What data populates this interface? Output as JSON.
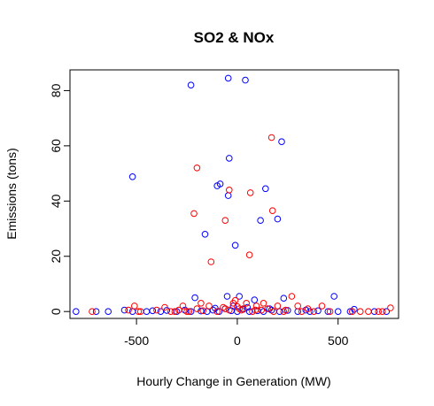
{
  "chart_data": {
    "type": "scatter",
    "title": "SO2 & NOx",
    "xlabel": "Hourly Change in Generation (MW)",
    "ylabel": "Emissions (tons)",
    "xlim": [
      -830,
      800
    ],
    "ylim": [
      -2.5,
      87.5
    ],
    "x_ticks": [
      -500,
      0,
      500
    ],
    "y_ticks": [
      0,
      20,
      40,
      60,
      80
    ],
    "grid": false,
    "legend": "none",
    "series": [
      {
        "color": "#0000ff",
        "points": [
          [
            -230,
            82
          ],
          [
            -45,
            84.5
          ],
          [
            40,
            83.8
          ],
          [
            220,
            61.5
          ],
          [
            -40,
            55.5
          ],
          [
            -520,
            48.8
          ],
          [
            140,
            44.5
          ],
          [
            -100,
            45.5
          ],
          [
            -85,
            46.2
          ],
          [
            -45,
            42
          ],
          [
            115,
            33
          ],
          [
            200,
            33.5
          ],
          [
            -160,
            28
          ],
          [
            -10,
            24
          ],
          [
            -210,
            5
          ],
          [
            -50,
            5.5
          ],
          [
            10,
            5.5
          ],
          [
            85,
            4.2
          ],
          [
            230,
            4.8
          ],
          [
            480,
            5.5
          ],
          [
            -800,
            0
          ],
          [
            -700,
            0
          ],
          [
            -640,
            0
          ],
          [
            -560,
            0.5
          ],
          [
            -520,
            0
          ],
          [
            -450,
            0
          ],
          [
            -420,
            0.3
          ],
          [
            -380,
            0
          ],
          [
            -350,
            0.4
          ],
          [
            -300,
            0
          ],
          [
            -260,
            0.5
          ],
          [
            -230,
            0
          ],
          [
            -180,
            0.2
          ],
          [
            -150,
            0
          ],
          [
            -120,
            0.5
          ],
          [
            -90,
            0
          ],
          [
            -60,
            1
          ],
          [
            -30,
            0.3
          ],
          [
            0,
            0
          ],
          [
            30,
            0.8
          ],
          [
            60,
            0
          ],
          [
            100,
            0.3
          ],
          [
            130,
            0
          ],
          [
            170,
            0.5
          ],
          [
            210,
            0
          ],
          [
            250,
            0.4
          ],
          [
            300,
            0
          ],
          [
            340,
            0.5
          ],
          [
            360,
            0
          ],
          [
            400,
            0.3
          ],
          [
            450,
            0
          ],
          [
            500,
            0
          ],
          [
            560,
            0
          ],
          [
            580,
            0.8
          ],
          [
            680,
            0
          ],
          [
            740,
            0
          ],
          [
            -20,
            2
          ],
          [
            50,
            1.5
          ],
          [
            -110,
            1.2
          ],
          [
            160,
            1
          ]
        ]
      },
      {
        "color": "#ff0000",
        "points": [
          [
            170,
            63
          ],
          [
            -200,
            52
          ],
          [
            -40,
            44
          ],
          [
            65,
            43
          ],
          [
            -215,
            35.5
          ],
          [
            175,
            36.5
          ],
          [
            -60,
            33
          ],
          [
            -130,
            18
          ],
          [
            60,
            20.5
          ],
          [
            -540,
            0.5
          ],
          [
            -510,
            2
          ],
          [
            -490,
            0
          ],
          [
            -720,
            0
          ],
          [
            -400,
            0.5
          ],
          [
            -360,
            1.5
          ],
          [
            -330,
            0
          ],
          [
            -290,
            0.5
          ],
          [
            -270,
            2
          ],
          [
            -240,
            0
          ],
          [
            -200,
            1
          ],
          [
            -170,
            0.3
          ],
          [
            -140,
            2
          ],
          [
            -100,
            0
          ],
          [
            -70,
            1.5
          ],
          [
            -40,
            0.5
          ],
          [
            -20,
            3
          ],
          [
            0,
            1.8
          ],
          [
            20,
            0.5
          ],
          [
            45,
            3
          ],
          [
            75,
            0
          ],
          [
            95,
            2
          ],
          [
            120,
            0.5
          ],
          [
            150,
            1
          ],
          [
            180,
            0
          ],
          [
            200,
            2
          ],
          [
            240,
            0.5
          ],
          [
            270,
            5.5
          ],
          [
            300,
            2
          ],
          [
            320,
            0
          ],
          [
            350,
            1
          ],
          [
            380,
            0
          ],
          [
            420,
            2
          ],
          [
            460,
            0
          ],
          [
            570,
            0
          ],
          [
            610,
            0
          ],
          [
            650,
            0
          ],
          [
            700,
            0
          ],
          [
            720,
            0
          ],
          [
            760,
            1.3
          ],
          [
            -180,
            3
          ],
          [
            -10,
            4
          ],
          [
            130,
            3
          ],
          [
            -60,
            1
          ],
          [
            10,
            1
          ],
          [
            -480,
            0
          ],
          [
            -310,
            0
          ],
          [
            90,
            0.5
          ],
          [
            230,
            0
          ],
          [
            30,
            1
          ],
          [
            -250,
            0
          ]
        ]
      }
    ]
  }
}
